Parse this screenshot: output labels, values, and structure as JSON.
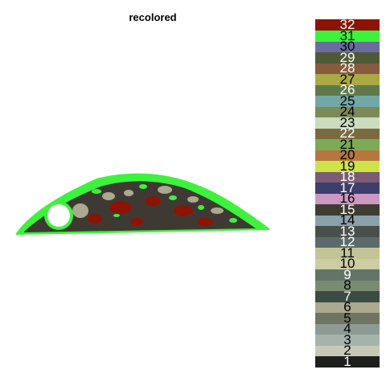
{
  "title": "recolored",
  "palette": [
    {
      "label": "1",
      "color": "#1f1f1c"
    },
    {
      "label": "2",
      "color": "#c7c8b6"
    },
    {
      "label": "3",
      "color": "#a4b4ac"
    },
    {
      "label": "4",
      "color": "#8e9a94"
    },
    {
      "label": "5",
      "color": "#6f7560"
    },
    {
      "label": "6",
      "color": "#aba98f"
    },
    {
      "label": "7",
      "color": "#3e4a45"
    },
    {
      "label": "8",
      "color": "#798c6f"
    },
    {
      "label": "9",
      "color": "#647467"
    },
    {
      "label": "10",
      "color": "#cccda4"
    },
    {
      "label": "11",
      "color": "#c3c495"
    },
    {
      "label": "12",
      "color": "#5d6a6b"
    },
    {
      "label": "13",
      "color": "#48504c"
    },
    {
      "label": "14",
      "color": "#8aa0ab"
    },
    {
      "label": "15",
      "color": "#3f3d33"
    },
    {
      "label": "16",
      "color": "#cc98c1"
    },
    {
      "label": "17",
      "color": "#3d3e6a"
    },
    {
      "label": "18",
      "color": "#7c5c73"
    },
    {
      "label": "19",
      "color": "#cde34a"
    },
    {
      "label": "20",
      "color": "#b5773f"
    },
    {
      "label": "21",
      "color": "#7dab55"
    },
    {
      "label": "22",
      "color": "#796b3f"
    },
    {
      "label": "23",
      "color": "#cadbc0"
    },
    {
      "label": "24",
      "color": "#7b8a57"
    },
    {
      "label": "25",
      "color": "#73a7a6"
    },
    {
      "label": "26",
      "color": "#60794a"
    },
    {
      "label": "27",
      "color": "#aaa945"
    },
    {
      "label": "28",
      "color": "#875b3d"
    },
    {
      "label": "29",
      "color": "#4e5a36"
    },
    {
      "label": "30",
      "color": "#6a6c9e"
    },
    {
      "label": "31",
      "color": "#3df23d"
    },
    {
      "label": "32",
      "color": "#8c1405"
    }
  ]
}
